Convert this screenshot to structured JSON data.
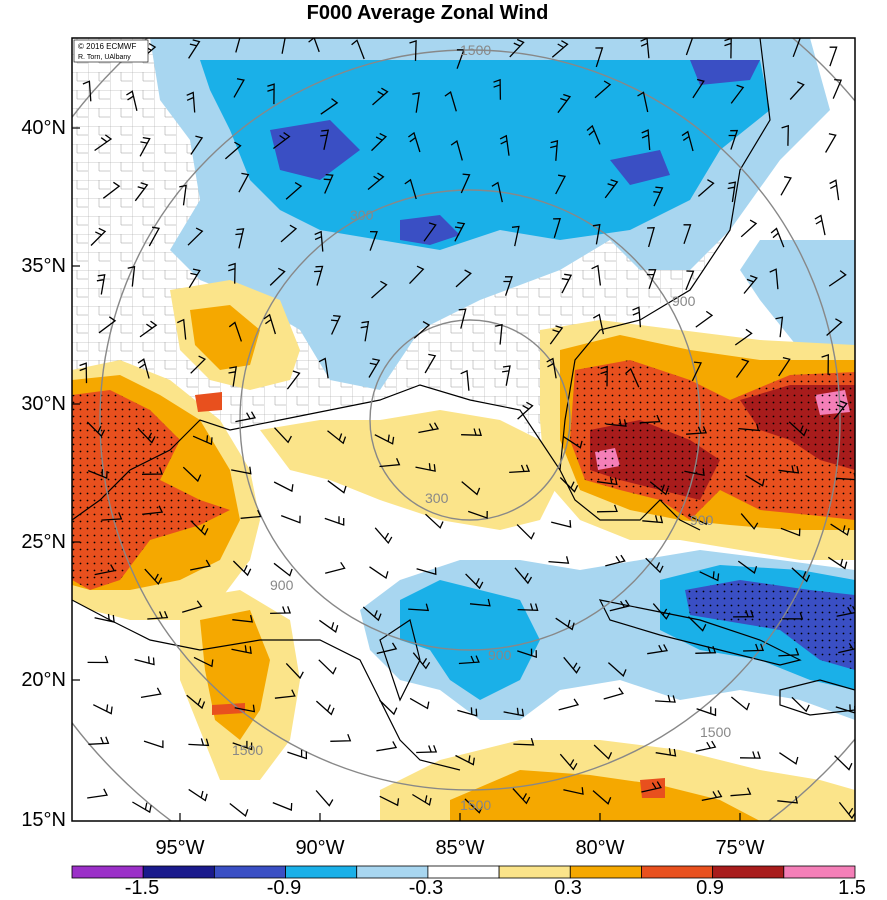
{
  "title": "F000 Average Zonal Wind",
  "credit": {
    "line1": "© 2016 ECMWF",
    "line2": "R. Torn, UAlbany"
  },
  "lat_labels": [
    "40°N",
    "35°N",
    "30°N",
    "25°N",
    "20°N",
    "15°N"
  ],
  "lon_labels": [
    "95°W",
    "90°W",
    "85°W",
    "80°W",
    "75°W"
  ],
  "contour_labels": [
    "300",
    "900",
    "900",
    "900",
    "1500",
    "1500",
    "300",
    "1500",
    "900",
    "1500"
  ],
  "colorbar": {
    "labels": [
      "-1.5",
      "-0.9",
      "-0.3",
      "0.3",
      "0.9",
      "1.5"
    ],
    "colors": [
      "#9b30c8",
      "#1a1a8c",
      "#3a4fc4",
      "#1ab0e8",
      "#a8d6f0",
      "#ffffff",
      "#fbe48a",
      "#f5a800",
      "#e8501e",
      "#a81c1c",
      "#f47fb8"
    ]
  },
  "colors": {
    "pos_light": "#fbe48a",
    "pos_mid": "#f5a800",
    "pos_strong": "#e8501e",
    "pos_max": "#a81c1c",
    "pos_extreme": "#f47fb8",
    "neg_light": "#a8d6f0",
    "neg_mid": "#1ab0e8",
    "neg_strong": "#3a4fc4",
    "neg_max": "#1a1a8c"
  }
}
